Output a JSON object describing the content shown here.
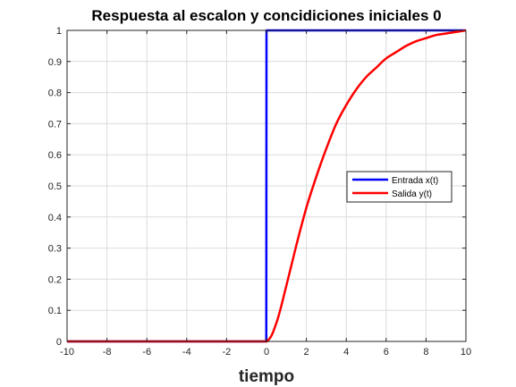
{
  "chart_data": {
    "type": "line",
    "title": "Respuesta al escalon y concidiciones iniciales 0",
    "xlabel": "tiempo",
    "ylabel": "",
    "xlim": [
      -10,
      10
    ],
    "ylim": [
      0,
      1
    ],
    "xticks": [
      -10,
      -8,
      -6,
      -4,
      -2,
      0,
      2,
      4,
      6,
      8,
      10
    ],
    "yticks": [
      0,
      0.1,
      0.2,
      0.3,
      0.4,
      0.5,
      0.6,
      0.7,
      0.8,
      0.9,
      1
    ],
    "xtick_labels": [
      "-10",
      "-8",
      "-6",
      "-4",
      "-2",
      "0",
      "2",
      "4",
      "6",
      "8",
      "10"
    ],
    "ytick_labels": [
      "0",
      "0.1",
      "0.2",
      "0.3",
      "0.4",
      "0.5",
      "0.6",
      "0.7",
      "0.8",
      "0.9",
      "1"
    ],
    "grid": true,
    "legend_position": "right",
    "series": [
      {
        "name": "Entrada x(t)",
        "color": "#0000ff",
        "x": [
          -10,
          -0.01,
          0,
          10
        ],
        "y": [
          0,
          0,
          1,
          1
        ]
      },
      {
        "name": "Salida y(t)",
        "color": "#ff0000",
        "x": [
          -10,
          -1,
          0,
          0.5,
          1,
          1.5,
          2,
          2.5,
          3,
          3.5,
          4,
          4.5,
          5,
          5.5,
          6,
          6.5,
          7,
          7.5,
          8,
          8.5,
          9,
          9.5,
          10
        ],
        "y": [
          0,
          0,
          0,
          0.06,
          0.18,
          0.31,
          0.43,
          0.53,
          0.62,
          0.7,
          0.76,
          0.81,
          0.85,
          0.88,
          0.91,
          0.93,
          0.95,
          0.965,
          0.975,
          0.985,
          0.99,
          0.995,
          1
        ]
      }
    ]
  }
}
